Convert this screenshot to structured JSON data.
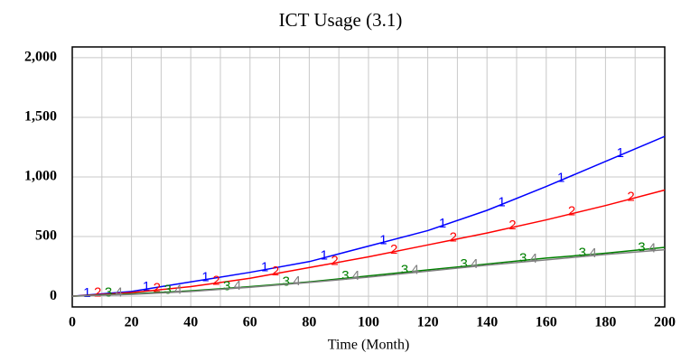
{
  "chart_data": {
    "type": "line",
    "title": "ICT Usage (3.1)",
    "x_label": "Time (Month)",
    "x": [
      0,
      20,
      40,
      60,
      80,
      100,
      120,
      140,
      160,
      180,
      200
    ],
    "series": [
      {
        "name": "1",
        "color": "#0000ff",
        "values": [
          0,
          40,
          120,
          200,
          290,
          420,
          550,
          720,
          920,
          1130,
          1340
        ]
      },
      {
        "name": "2",
        "color": "#ff0000",
        "values": [
          0,
          30,
          80,
          150,
          240,
          330,
          430,
          530,
          640,
          760,
          890
        ]
      },
      {
        "name": "3",
        "color": "#008000",
        "values": [
          0,
          20,
          45,
          80,
          120,
          170,
          220,
          270,
          320,
          360,
          410
        ]
      },
      {
        "name": "4",
        "color": "#808080",
        "values": [
          0,
          15,
          40,
          75,
          115,
          160,
          210,
          260,
          305,
          350,
          390
        ]
      }
    ],
    "xlim": [
      0,
      200
    ],
    "xticks": [
      0,
      20,
      40,
      60,
      80,
      100,
      120,
      140,
      160,
      180,
      200
    ],
    "x_minor_grid": [
      10,
      30,
      50,
      70,
      90,
      110,
      130,
      150,
      170,
      190
    ],
    "ylim": [
      -90,
      2090
    ],
    "yticks": [
      0,
      {
        "value": 500,
        "label": "500"
      },
      {
        "value": 1000,
        "label": "1,000"
      },
      {
        "value": 1500,
        "label": "1,500"
      },
      {
        "value": 2000,
        "label": "2,000"
      }
    ],
    "grid": true
  }
}
